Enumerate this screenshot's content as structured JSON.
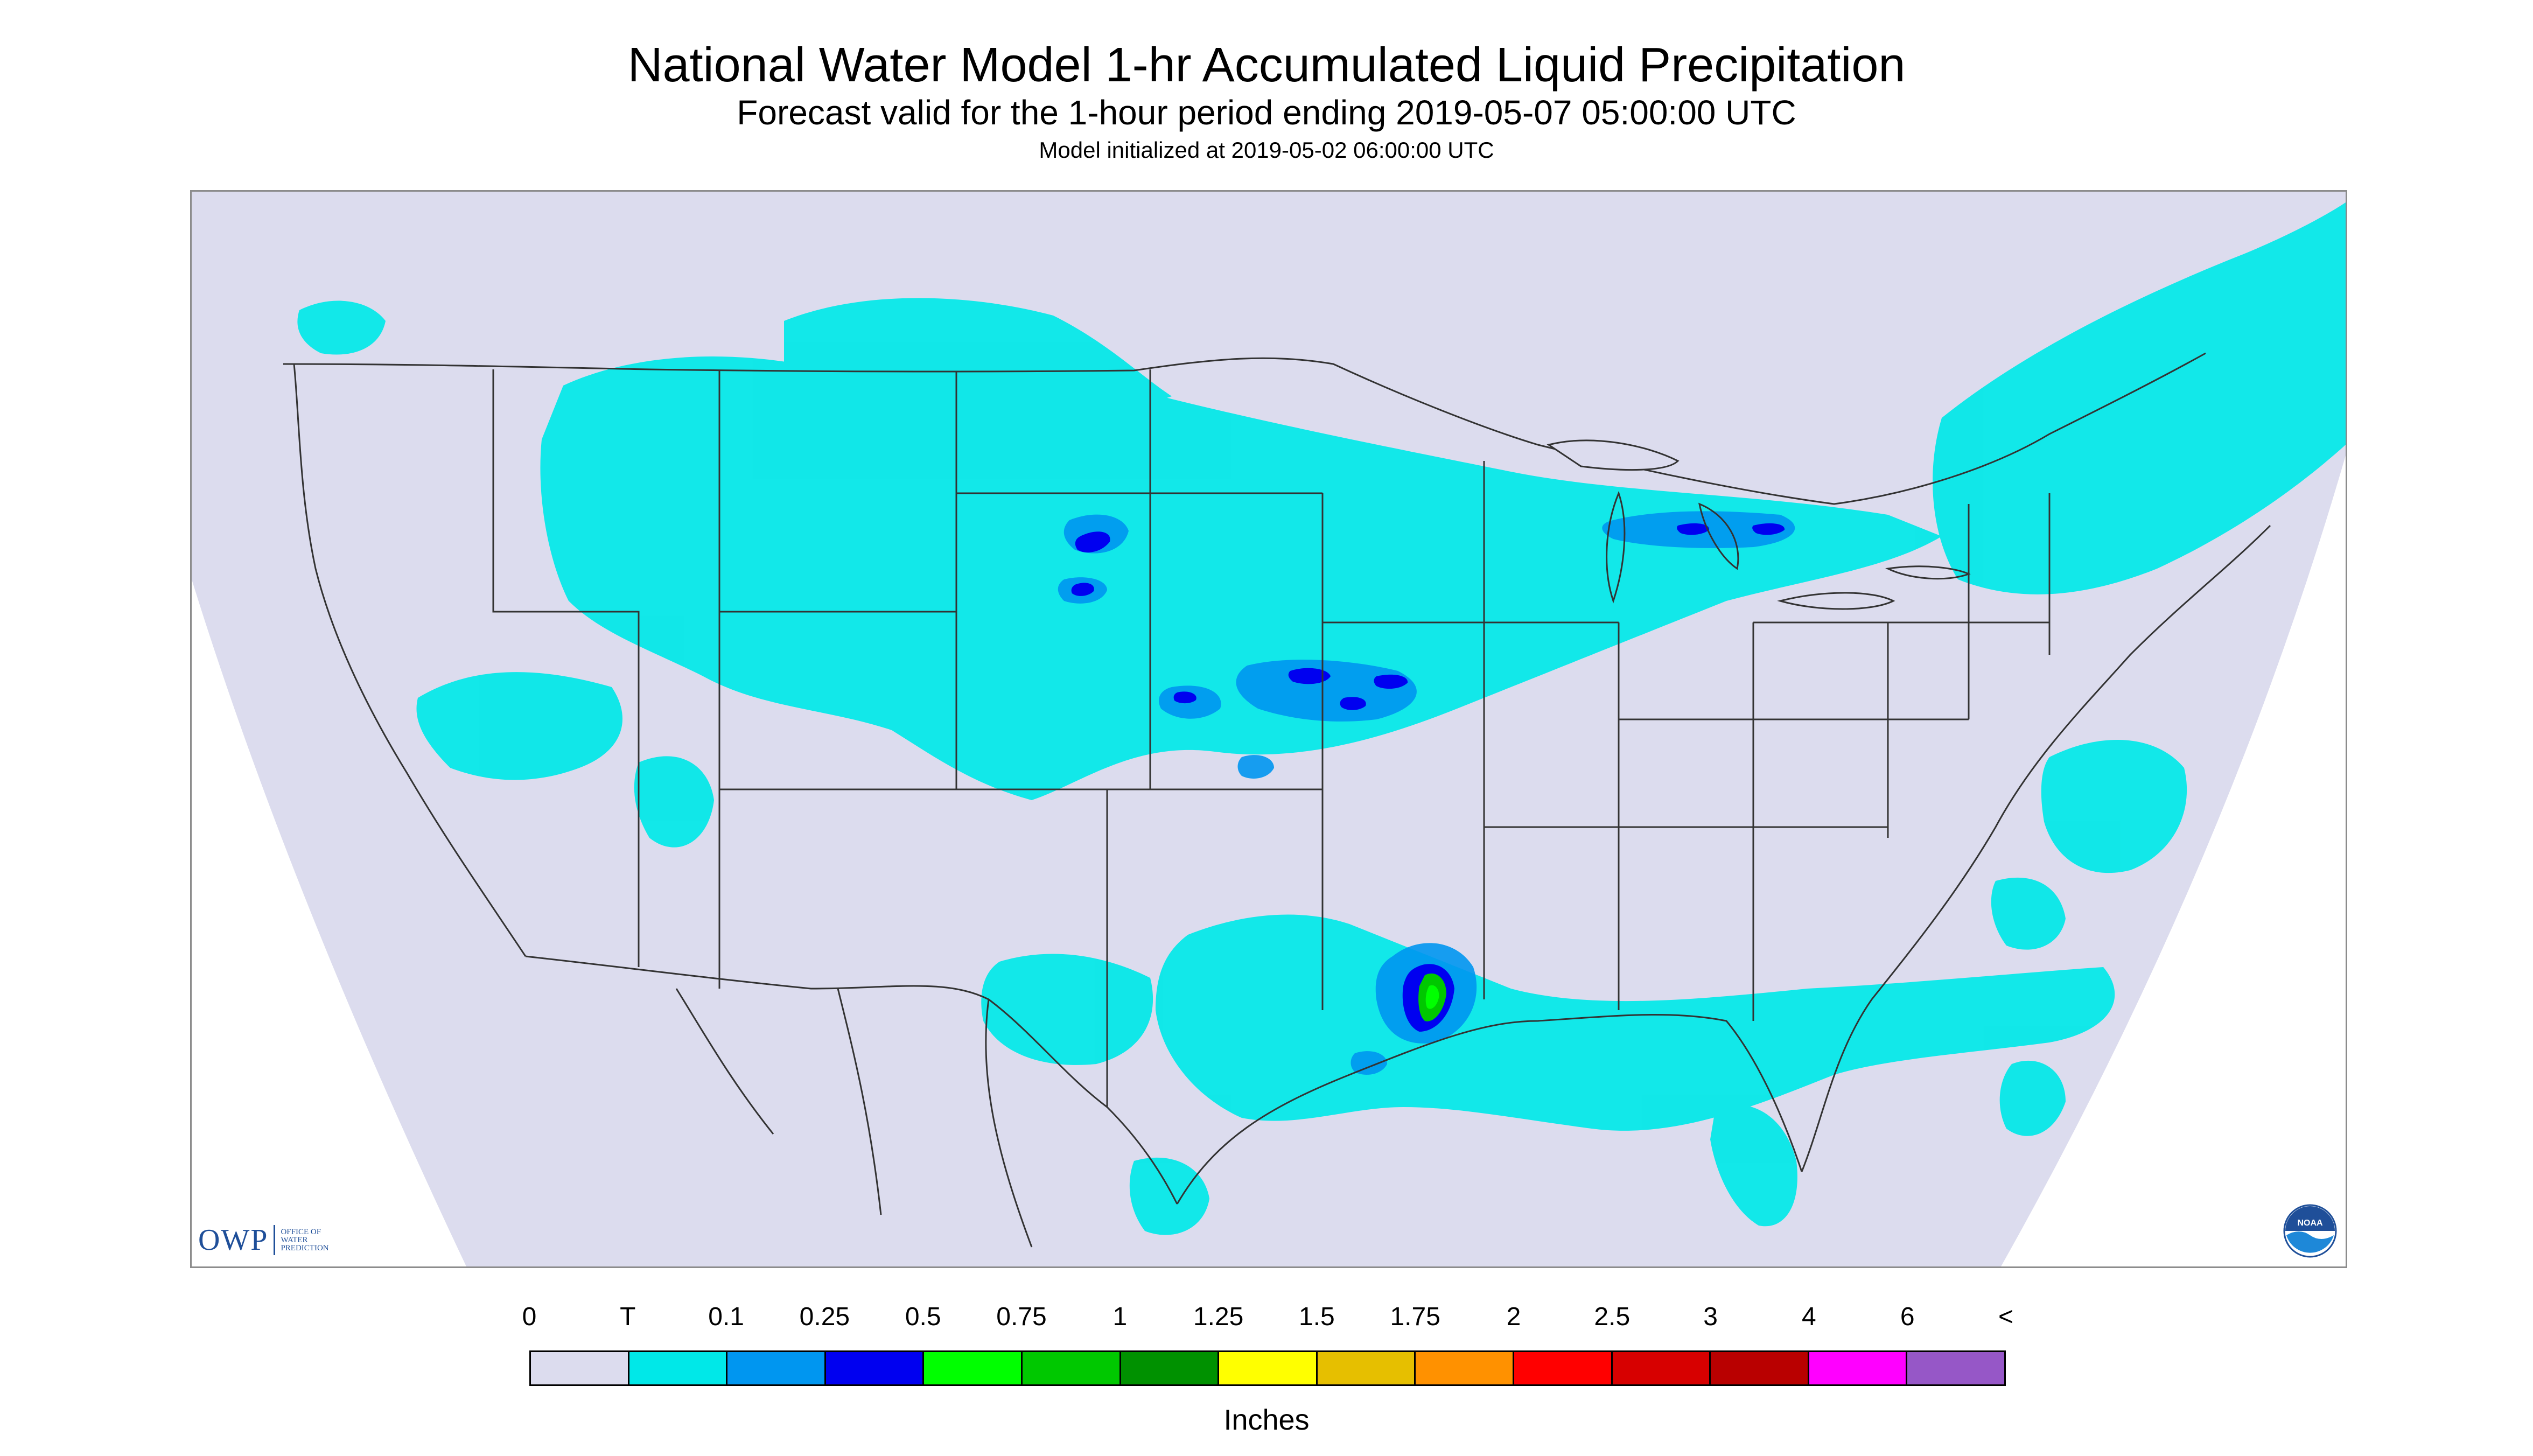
{
  "title": "National Water Model 1-hr Accumulated Liquid Precipitation",
  "subtitle": "Forecast valid for the 1-hour period ending 2019-05-07 05:00:00 UTC",
  "init_line": "Model initialized at 2019-05-02 06:00:00 UTC",
  "logo": {
    "owp_text": "OWP",
    "owp_line1": "OFFICE OF",
    "owp_line2": "WATER",
    "owp_line3": "PREDICTION",
    "noaa_text": "NOAA"
  },
  "legend": {
    "labels": [
      "0",
      "T",
      "0.1",
      "0.25",
      "0.5",
      "0.75",
      "1",
      "1.25",
      "1.5",
      "1.75",
      "2",
      "2.5",
      "3",
      "4",
      "6",
      "<"
    ],
    "colors": [
      "#dcdcee",
      "#00e8e8",
      "#0096f0",
      "#0000f0",
      "#00ff00",
      "#00c800",
      "#009100",
      "#ffff00",
      "#e6bf00",
      "#ff9100",
      "#ff0000",
      "#d70000",
      "#b90000",
      "#ff00ff",
      "#9657c7"
    ],
    "units": "Inches"
  },
  "colors": {
    "background": "#dcdcee",
    "trace": "#00e8e8",
    "light": "#0096f0",
    "heavy": "#0000f0",
    "green": "#00c800",
    "lime": "#00ff00",
    "border": "#333333",
    "logo_blue": "#1f4f99"
  }
}
